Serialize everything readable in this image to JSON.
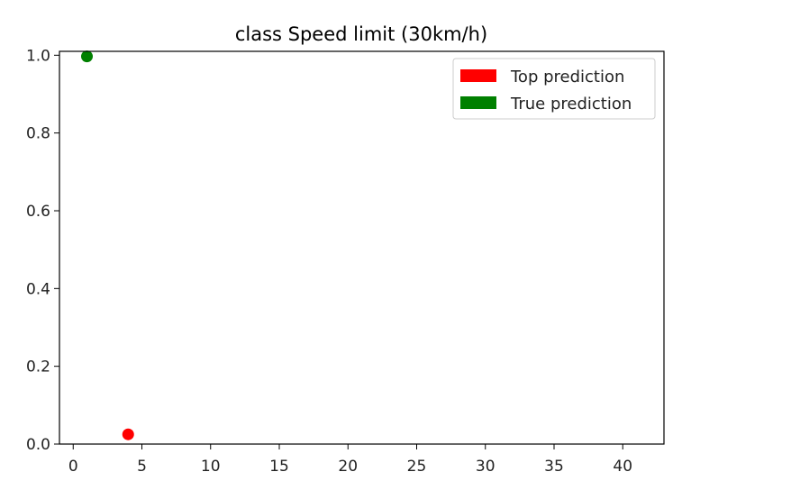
{
  "chart_data": {
    "type": "scatter",
    "title": "class Speed limit (30km/h)",
    "xlabel": "",
    "ylabel": "",
    "xlim": [
      -1.0,
      43.0
    ],
    "ylim": [
      0.0,
      1.01
    ],
    "x_ticks": [
      0,
      5,
      10,
      15,
      20,
      25,
      30,
      35,
      40
    ],
    "y_ticks": [
      0.0,
      0.2,
      0.4,
      0.6,
      0.8,
      1.0
    ],
    "x_tick_labels": [
      "0",
      "5",
      "10",
      "15",
      "20",
      "25",
      "30",
      "35",
      "40"
    ],
    "y_tick_labels": [
      "0.0",
      "0.2",
      "0.4",
      "0.6",
      "0.8",
      "1.0"
    ],
    "grid": false,
    "legend_position": "top-right",
    "legend": [
      {
        "label": "Top prediction",
        "color": "#ff0000"
      },
      {
        "label": "True prediction",
        "color": "#008000"
      }
    ],
    "series": [
      {
        "name": "True prediction",
        "color": "#008000",
        "points": [
          {
            "x": 1,
            "y": 0.997
          }
        ]
      },
      {
        "name": "Top prediction",
        "color": "#ff0000",
        "points": [
          {
            "x": 4,
            "y": 0.025
          }
        ]
      }
    ]
  }
}
